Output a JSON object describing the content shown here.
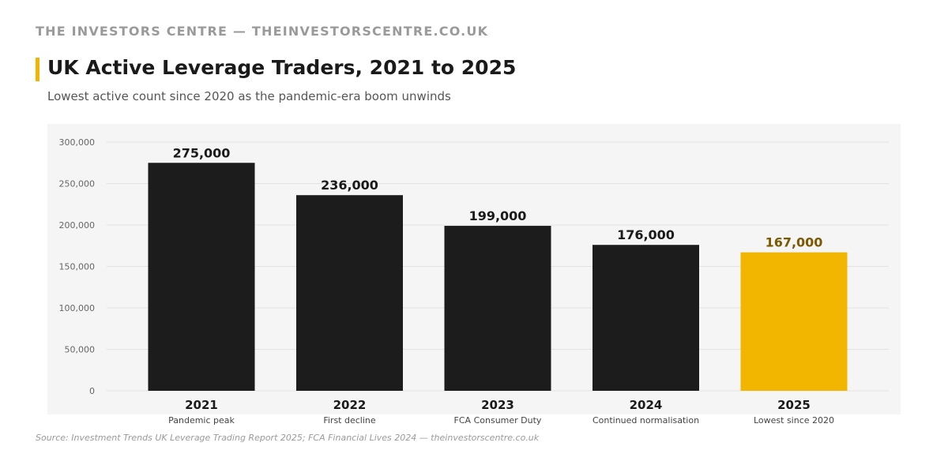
{
  "brand": "THE INVESTORS CENTRE — THEINVESTORSCENTRE.CO.UK",
  "title": "UK Active Leverage Traders, 2021 to 2025",
  "subtitle": "Lowest active count since 2020 as the pandemic-era boom unwinds",
  "source": "Source: Investment Trends UK Leverage Trading Report 2025; FCA Financial Lives 2024 — theinvestorscentre.co.uk",
  "colors": {
    "bar": "#1c1c1c",
    "highlight": "#f2b500",
    "highlight_label": "#7a5a00",
    "accent": "#f2b500",
    "panel_bg": "#f5f5f5",
    "grid": "#e2e2e2"
  },
  "chart_data": {
    "type": "bar",
    "title": "UK Active Leverage Traders, 2021 to 2025",
    "categories": [
      "2021",
      "2022",
      "2023",
      "2024",
      "2025"
    ],
    "category_notes": [
      "Pandemic peak",
      "First decline",
      "FCA Consumer Duty",
      "Continued normalisation",
      "Lowest since 2020"
    ],
    "values": [
      275000,
      236000,
      199000,
      176000,
      167000
    ],
    "value_labels": [
      "275,000",
      "236,000",
      "199,000",
      "176,000",
      "167,000"
    ],
    "highlight_index": 4,
    "y_ticks": [
      0,
      50000,
      100000,
      150000,
      200000,
      250000,
      300000
    ],
    "y_tick_labels": [
      "0",
      "50,000",
      "100,000",
      "150,000",
      "200,000",
      "250,000",
      "300,000"
    ],
    "ylim": [
      0,
      300000
    ],
    "xlabel": "",
    "ylabel": "",
    "grid": true
  }
}
